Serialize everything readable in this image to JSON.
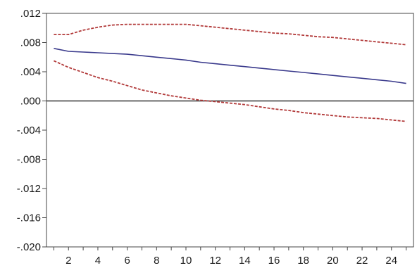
{
  "chart_data": {
    "type": "line",
    "x": [
      1,
      2,
      3,
      4,
      5,
      6,
      7,
      8,
      9,
      10,
      11,
      12,
      13,
      14,
      15,
      16,
      17,
      18,
      19,
      20,
      21,
      22,
      23,
      24,
      25
    ],
    "x_ticks": [
      2,
      4,
      6,
      8,
      10,
      12,
      14,
      16,
      18,
      20,
      22,
      24
    ],
    "x_tick_labels": [
      "2",
      "4",
      "6",
      "8",
      "10",
      "12",
      "14",
      "16",
      "18",
      "20",
      "22",
      "24"
    ],
    "ylim": [
      -0.02,
      0.012
    ],
    "y_ticks": [
      0.012,
      0.008,
      0.004,
      0.0,
      -0.004,
      -0.008,
      -0.012,
      -0.016,
      -0.02
    ],
    "y_tick_labels": [
      ".012",
      ".008",
      ".004",
      ".000",
      "-.004",
      "-.008",
      "-.012",
      "-.016",
      "-.020"
    ],
    "grid": false,
    "zero_line": true,
    "series": [
      {
        "role": "upper-band",
        "style": "dashed",
        "color": "#b23a3a",
        "values": [
          0.0091,
          0.0091,
          0.0097,
          0.0101,
          0.0104,
          0.0105,
          0.0105,
          0.0105,
          0.0105,
          0.0105,
          0.0103,
          0.0101,
          0.0099,
          0.0097,
          0.0095,
          0.0093,
          0.0092,
          0.009,
          0.0088,
          0.0087,
          0.0085,
          0.0083,
          0.0081,
          0.0079,
          0.0077
        ]
      },
      {
        "role": "response",
        "style": "solid",
        "color": "#3a3a8c",
        "values": [
          0.0072,
          0.0068,
          0.0067,
          0.0066,
          0.0065,
          0.0064,
          0.0062,
          0.006,
          0.0058,
          0.0056,
          0.0053,
          0.0051,
          0.0049,
          0.0047,
          0.0045,
          0.0043,
          0.0041,
          0.0039,
          0.0037,
          0.0035,
          0.0033,
          0.0031,
          0.0029,
          0.0027,
          0.0024
        ]
      },
      {
        "role": "lower-band",
        "style": "dashed",
        "color": "#b23a3a",
        "values": [
          0.0055,
          0.0046,
          0.0039,
          0.0032,
          0.0027,
          0.0021,
          0.0015,
          0.0011,
          0.0007,
          0.0004,
          0.0001,
          -0.0001,
          -0.0003,
          -0.0005,
          -0.0008,
          -0.0011,
          -0.0013,
          -0.0016,
          -0.0018,
          -0.002,
          -0.0022,
          -0.0023,
          -0.0024,
          -0.0026,
          -0.0028
        ]
      }
    ]
  }
}
